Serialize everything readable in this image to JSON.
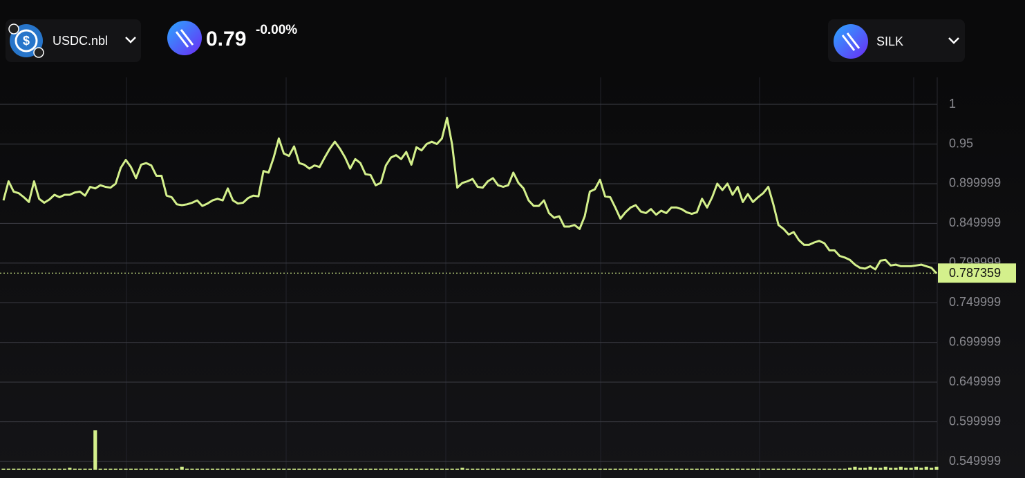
{
  "header": {
    "base_token": "USDC.nbl",
    "price": "0.79",
    "change": "-0.00%",
    "quote_token": "SILK"
  },
  "chart_data": {
    "type": "line",
    "series": [
      {
        "color": "#d4f08c",
        "values": [
          0.879,
          0.903,
          0.89,
          0.888,
          0.883,
          0.877,
          0.903,
          0.881,
          0.876,
          0.88,
          0.886,
          0.883,
          0.886,
          0.886,
          0.889,
          0.89,
          0.885,
          0.896,
          0.894,
          0.898,
          0.896,
          0.895,
          0.9,
          0.92,
          0.93,
          0.921,
          0.907,
          0.924,
          0.926,
          0.923,
          0.91,
          0.91,
          0.885,
          0.883,
          0.874,
          0.873,
          0.874,
          0.876,
          0.879,
          0.872,
          0.875,
          0.879,
          0.881,
          0.879,
          0.894,
          0.879,
          0.875,
          0.876,
          0.882,
          0.885,
          0.884,
          0.916,
          0.914,
          0.933,
          0.957,
          0.938,
          0.935,
          0.947,
          0.926,
          0.924,
          0.919,
          0.923,
          0.921,
          0.933,
          0.944,
          0.953,
          0.944,
          0.933,
          0.919,
          0.931,
          0.926,
          0.912,
          0.911,
          0.898,
          0.901,
          0.923,
          0.933,
          0.936,
          0.931,
          0.94,
          0.924,
          0.946,
          0.942,
          0.95,
          0.953,
          0.95,
          0.957,
          0.983,
          0.949,
          0.895,
          0.901,
          0.903,
          0.906,
          0.896,
          0.895,
          0.903,
          0.907,
          0.898,
          0.896,
          0.898,
          0.914,
          0.901,
          0.894,
          0.879,
          0.872,
          0.872,
          0.879,
          0.863,
          0.857,
          0.859,
          0.846,
          0.846,
          0.848,
          0.843,
          0.859,
          0.89,
          0.893,
          0.905,
          0.884,
          0.883,
          0.87,
          0.856,
          0.864,
          0.87,
          0.873,
          0.865,
          0.863,
          0.868,
          0.861,
          0.866,
          0.863,
          0.87,
          0.87,
          0.868,
          0.864,
          0.862,
          0.864,
          0.881,
          0.87,
          0.883,
          0.9,
          0.892,
          0.9,
          0.886,
          0.896,
          0.877,
          0.887,
          0.877,
          0.883,
          0.888,
          0.896,
          0.874,
          0.848,
          0.843,
          0.836,
          0.839,
          0.829,
          0.823,
          0.823,
          0.826,
          0.828,
          0.825,
          0.816,
          0.816,
          0.809,
          0.807,
          0.804,
          0.798,
          0.794,
          0.793,
          0.796,
          0.792,
          0.803,
          0.804,
          0.797,
          0.798,
          0.796,
          0.796,
          0.796,
          0.797,
          0.798,
          0.796,
          0.794,
          0.787
        ]
      }
    ],
    "volume": [
      1,
      1,
      1,
      1,
      1,
      1,
      1,
      1,
      1,
      1,
      1,
      1,
      1,
      2,
      1,
      1,
      1,
      1,
      40,
      1,
      1,
      1,
      1,
      1,
      1,
      1,
      1,
      1,
      1,
      1,
      1,
      1,
      1,
      1,
      1,
      3,
      1,
      1,
      1,
      1,
      1,
      1,
      1,
      1,
      1,
      1,
      1,
      1,
      1,
      1,
      1,
      1,
      1,
      1,
      1,
      1,
      1,
      1,
      1,
      1,
      1,
      1,
      1,
      1,
      1,
      1,
      1,
      1,
      1,
      1,
      1,
      1,
      1,
      1,
      1,
      1,
      1,
      1,
      1,
      1,
      1,
      1,
      1,
      1,
      1,
      1,
      1,
      1,
      1,
      1,
      2,
      1,
      1,
      1,
      1,
      1,
      1,
      1,
      1,
      1,
      1,
      1,
      1,
      1,
      1,
      1,
      1,
      1,
      1,
      1,
      1,
      1,
      1,
      1,
      1,
      1,
      1,
      1,
      1,
      1,
      1,
      1,
      1,
      1,
      1,
      1,
      1,
      1,
      1,
      1,
      1,
      1,
      1,
      1,
      1,
      1,
      1,
      1,
      1,
      1,
      1,
      1,
      1,
      1,
      1,
      1,
      1,
      1,
      1,
      1,
      1,
      1,
      1,
      1,
      1,
      1,
      1,
      1,
      1,
      1,
      1,
      1,
      1,
      1,
      1,
      1,
      2,
      3,
      2,
      2,
      3,
      2,
      2,
      3,
      2,
      2,
      3,
      2,
      2,
      3,
      2,
      3,
      2,
      3
    ],
    "volume_color": "#d4f08c",
    "last_price": 0.787359,
    "ylim": [
      0.5396,
      1.034
    ],
    "yticks": [
      1,
      0.95,
      0.899999,
      0.849999,
      0.799999,
      0.749999,
      0.699999,
      0.649999,
      0.599999,
      0.549999
    ],
    "grid": true
  }
}
